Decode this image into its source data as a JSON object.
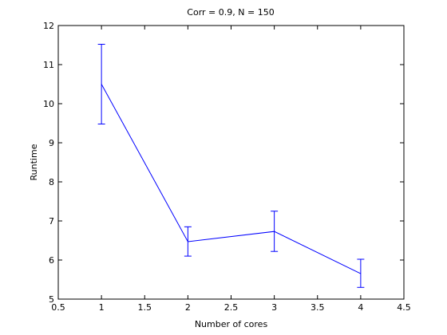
{
  "chart_data": {
    "type": "line",
    "title": "Corr = 0.9, N = 150",
    "xlabel": "Number of cores",
    "ylabel": "Runtime",
    "xlim": [
      0.5,
      4.5
    ],
    "ylim": [
      5,
      12
    ],
    "xticks": [
      0.5,
      1,
      1.5,
      2,
      2.5,
      3,
      3.5,
      4,
      4.5
    ],
    "xtick_labels": [
      "0.5",
      "1",
      "1.5",
      "2",
      "2.5",
      "3",
      "3.5",
      "4",
      "4.5"
    ],
    "yticks": [
      5,
      6,
      7,
      8,
      9,
      10,
      11,
      12
    ],
    "ytick_labels": [
      "5",
      "6",
      "7",
      "8",
      "9",
      "10",
      "11",
      "12"
    ],
    "grid": false,
    "series": [
      {
        "color": "#0000ff",
        "x": [
          1,
          2,
          3,
          4
        ],
        "y": [
          10.5,
          6.47,
          6.73,
          5.65
        ],
        "err_low": [
          9.48,
          6.1,
          6.22,
          5.3
        ],
        "err_high": [
          11.52,
          6.85,
          7.25,
          6.02
        ]
      }
    ]
  }
}
